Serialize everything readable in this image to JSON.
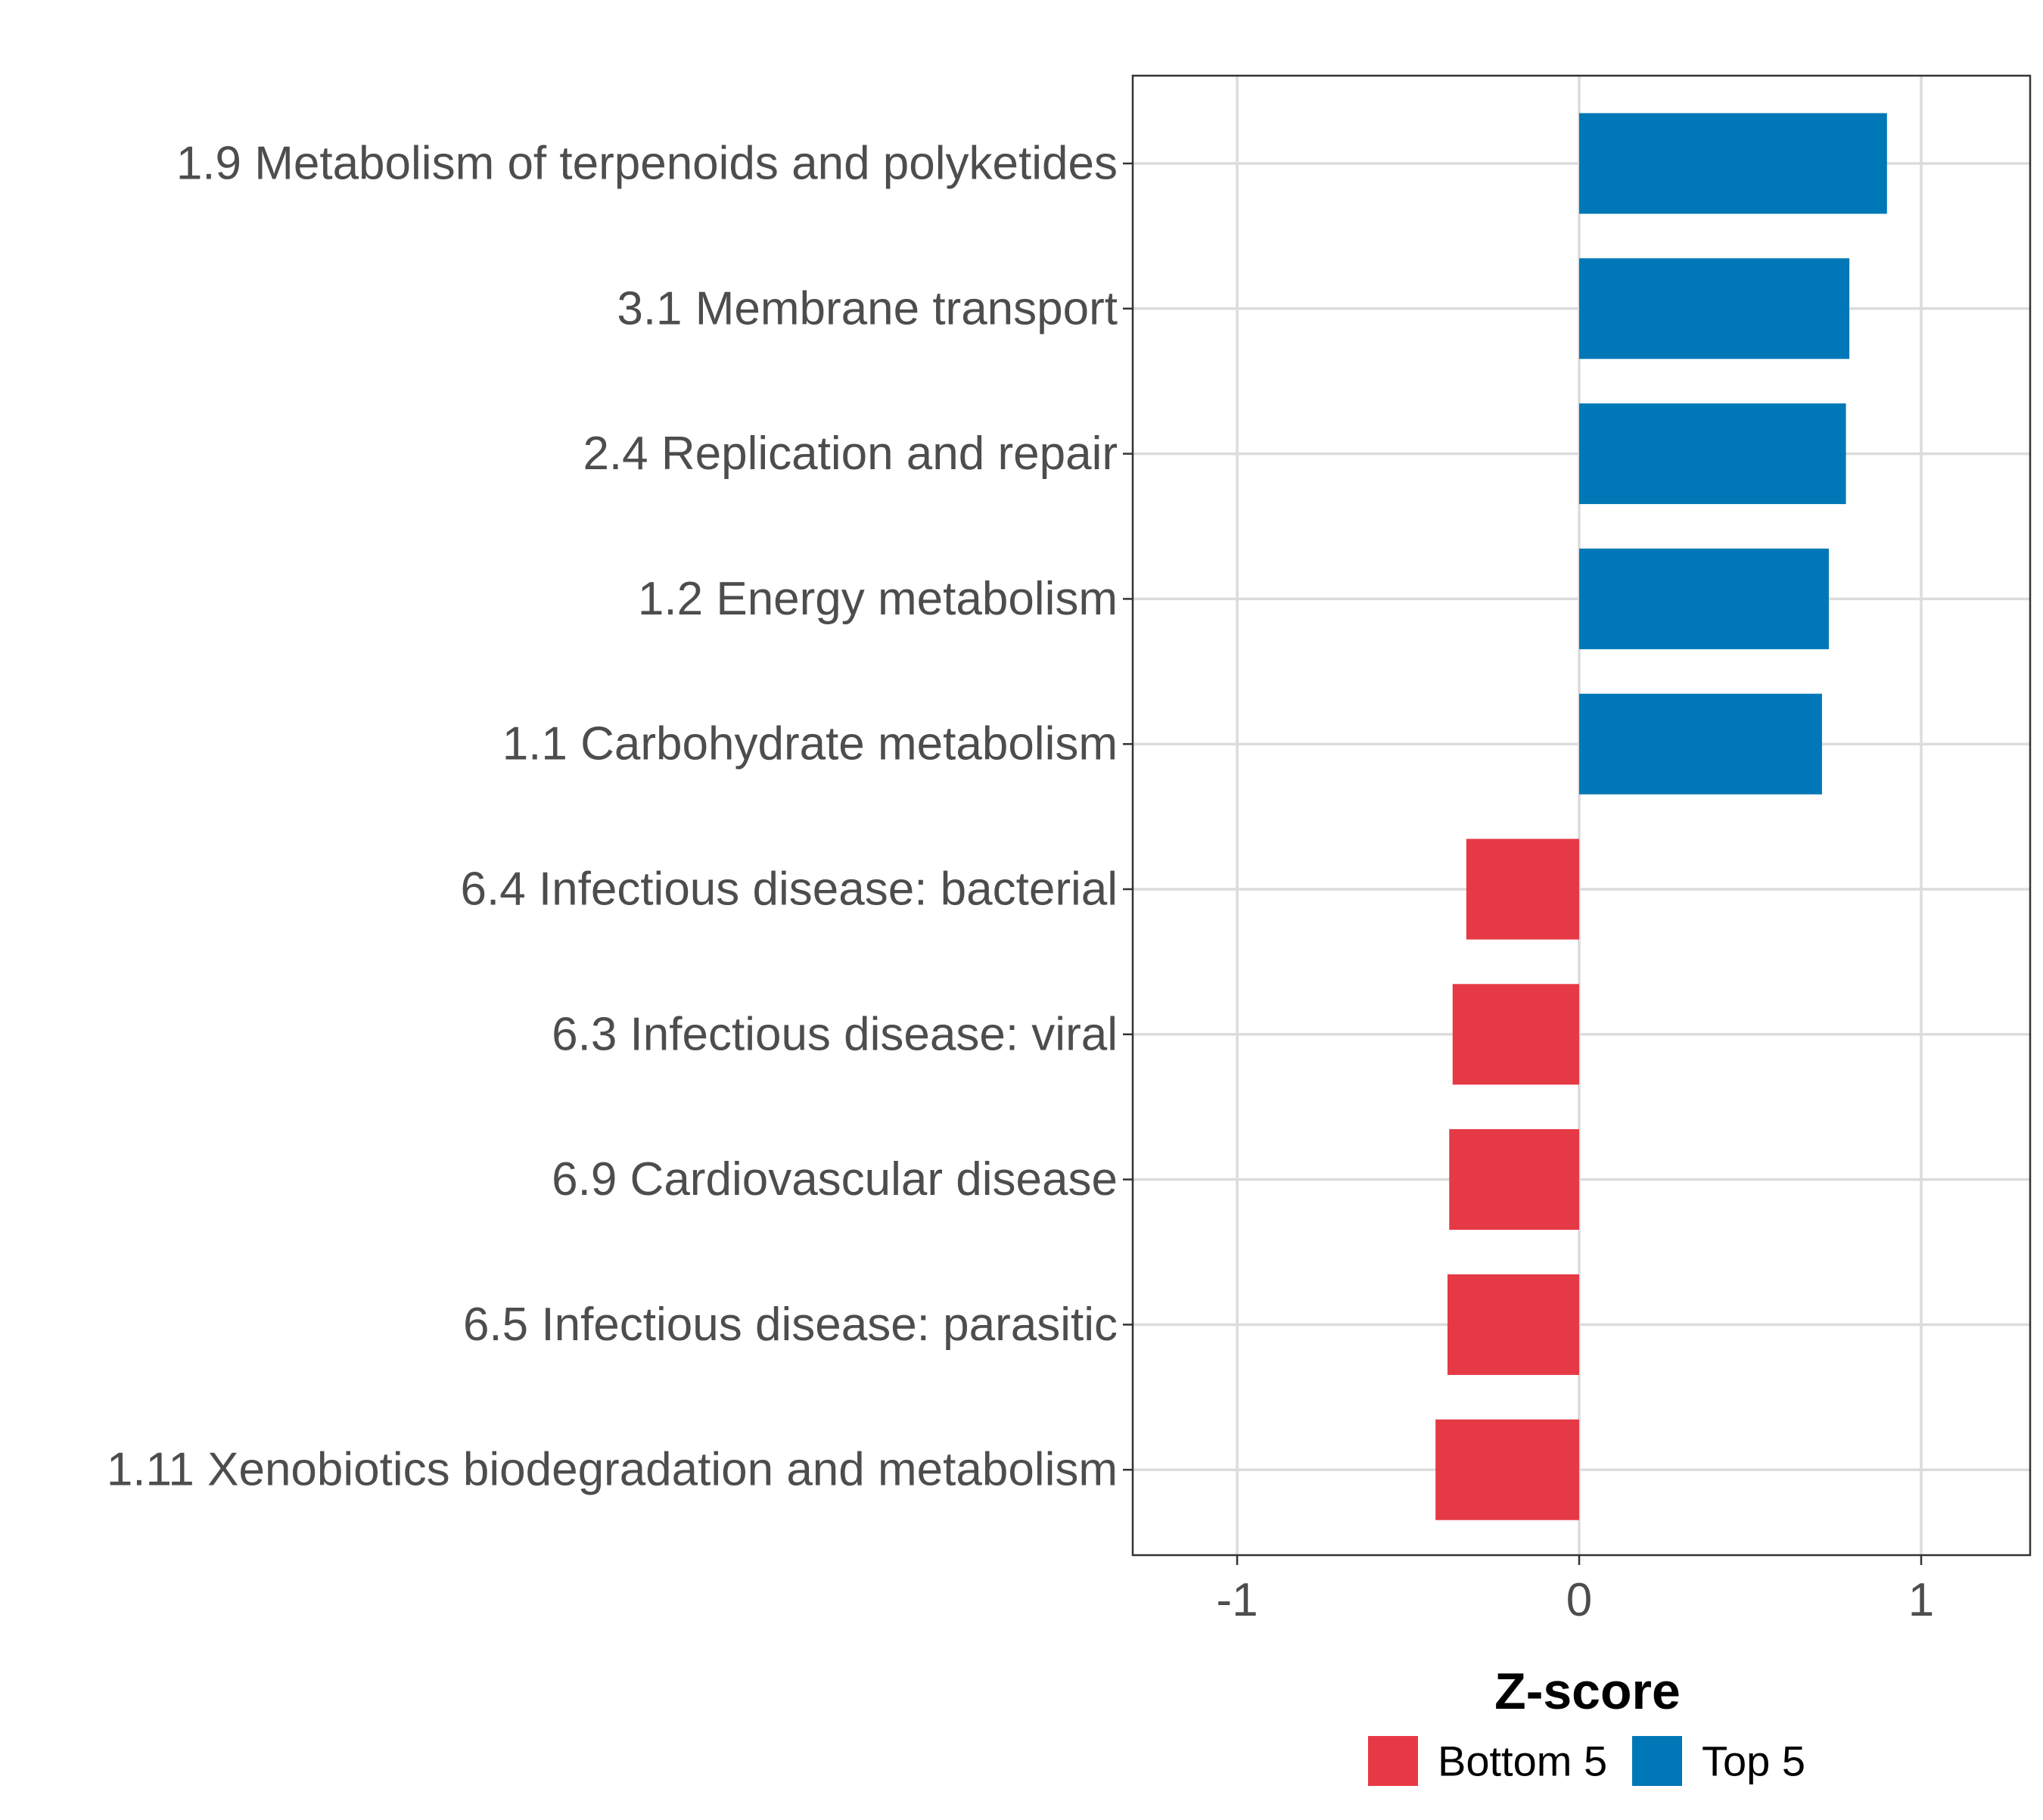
{
  "chart_data": {
    "type": "bar",
    "orientation": "horizontal",
    "title": "",
    "xlabel": "Z-score",
    "ylabel": "",
    "xlim": [
      -1.32,
      1.32
    ],
    "xticks": [
      -1,
      0,
      1
    ],
    "xtick_labels": [
      "-1",
      "0",
      "1"
    ],
    "grid": true,
    "legend_position": "bottom",
    "categories": [
      "1.9 Metabolism of terpenoids and polyketides",
      "3.1 Membrane transport",
      "2.4 Replication and repair",
      "1.2 Energy metabolism",
      "1.1 Carbohydrate metabolism",
      "6.4 Infectious disease: bacterial",
      "6.3 Infectious disease: viral",
      "6.9 Cardiovascular disease",
      "6.5 Infectious disease: parasitic",
      "1.11 Xenobiotics biodegradation and metabolism"
    ],
    "values": [
      0.9,
      0.79,
      0.78,
      0.73,
      0.71,
      -0.33,
      -0.37,
      -0.38,
      -0.385,
      -0.42
    ],
    "groups": [
      "Top 5",
      "Top 5",
      "Top 5",
      "Top 5",
      "Top 5",
      "Bottom 5",
      "Bottom 5",
      "Bottom 5",
      "Bottom 5",
      "Bottom 5"
    ],
    "legend": [
      {
        "name": "Bottom 5",
        "color": "#E63946"
      },
      {
        "name": "Top 5",
        "color": "#0077B6"
      }
    ]
  }
}
